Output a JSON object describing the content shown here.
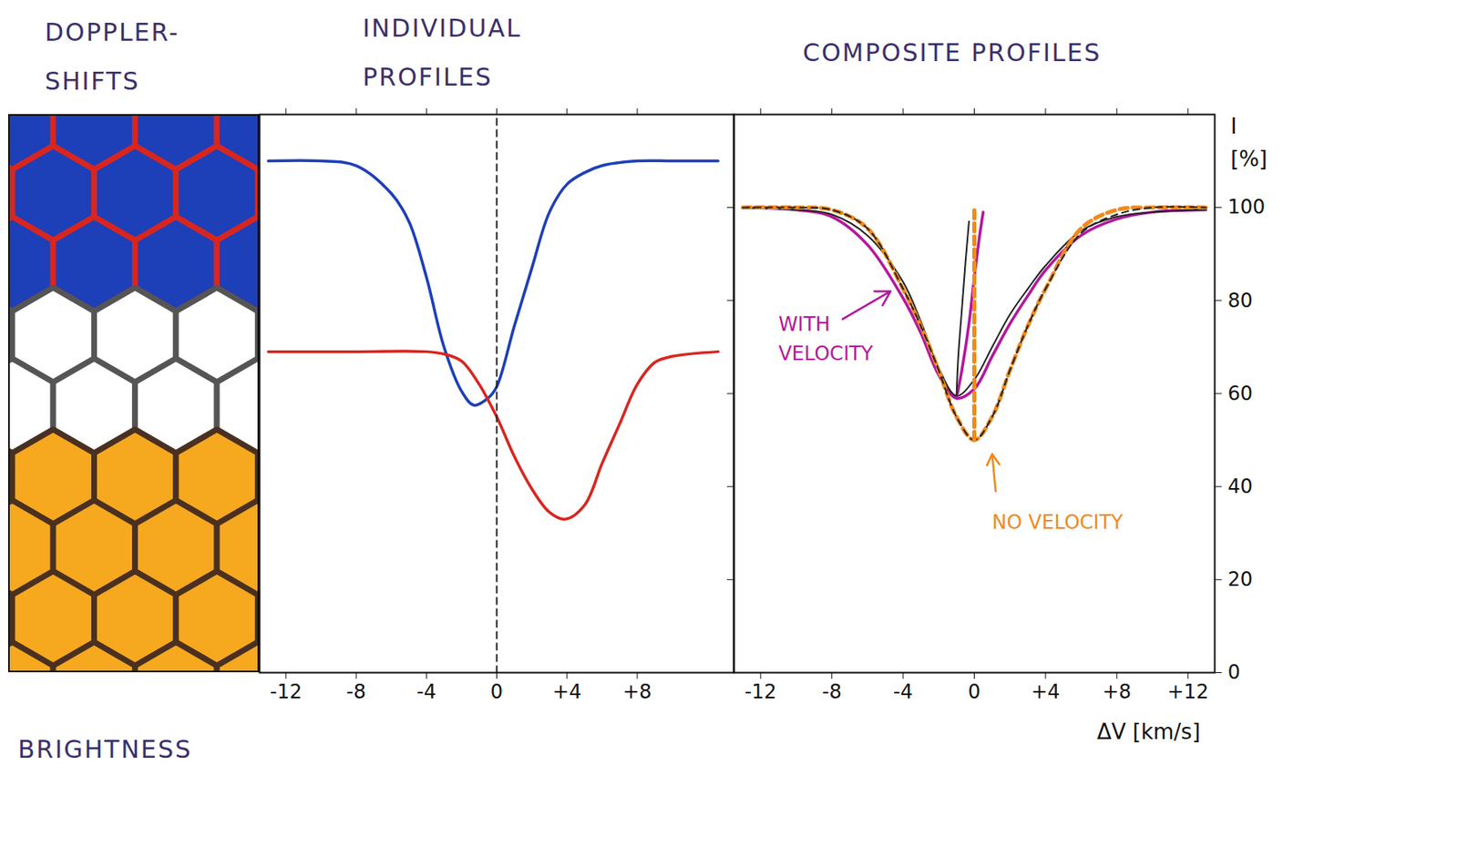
{
  "chart_data": [
    {
      "type": "hexagons",
      "title": "DOPPLER-SHIFTS",
      "xlabel": "BRIGHTNESS",
      "colors": [
        "#1d3fb8",
        "#d8261f",
        "#ffffff",
        "#555555",
        "#f6a81f",
        "#4a3020"
      ]
    },
    {
      "type": "line",
      "title": "INDIVIDUAL PROFILES",
      "xlim": [
        -13.5,
        13.5
      ],
      "xticks": [
        -12,
        -8,
        -4,
        0,
        {
          "value": 4,
          "label": "+4"
        },
        {
          "value": 8,
          "label": "+8"
        }
      ],
      "ylim": [
        0,
        120
      ],
      "tick_labels": "x",
      "series": [
        {
          "color": "#1d3fb8",
          "line_style": "solid",
          "x": [
            -13,
            -10,
            -8,
            -6,
            -5,
            -4,
            -3,
            -2,
            -1.3,
            -0.5,
            0,
            1,
            2,
            3,
            4,
            5,
            6,
            8,
            10,
            12.6
          ],
          "values": [
            110,
            110,
            109,
            103,
            97,
            85,
            70,
            60.5,
            57.5,
            59,
            61.5,
            74.5,
            87,
            99,
            105,
            107.5,
            109,
            110,
            110,
            110
          ]
        },
        {
          "color": "#d8261f",
          "line_style": "solid",
          "x": [
            -13,
            -8,
            -4,
            -3,
            -2,
            -1,
            0,
            1,
            2,
            3,
            3.9,
            5,
            6,
            7,
            8,
            9,
            10,
            12.6
          ],
          "values": [
            69,
            69,
            69,
            68.5,
            67,
            62,
            55,
            46.5,
            39.5,
            34.5,
            33,
            36,
            45,
            53.5,
            62,
            66.7,
            68,
            69
          ]
        },
        {
          "color": "#222222",
          "line_style": "dashed",
          "x": [
            0,
            0
          ],
          "values": [
            0,
            120
          ]
        }
      ]
    },
    {
      "type": "line",
      "title": "COMPOSITE PROFILES",
      "xlabel": "ΔV [km/s]",
      "ylabel": "I [%]",
      "xlim": [
        -13.5,
        13.5
      ],
      "xticks": [
        -12,
        -8,
        -4,
        0,
        {
          "value": 4,
          "label": "+4"
        },
        {
          "value": 8,
          "label": "+8"
        },
        {
          "value": 12,
          "label": "+12"
        }
      ],
      "ylim": [
        0,
        120
      ],
      "yticks": [
        0,
        20,
        40,
        60,
        80,
        100
      ],
      "series": [
        {
          "name": "WITH VELOCITY",
          "color": "#b5179e",
          "line_style": "solid",
          "x": [
            -13,
            -10,
            -8,
            -6,
            -4,
            -3,
            -2,
            -1,
            0,
            1,
            2,
            3,
            4,
            6,
            8,
            10,
            13
          ],
          "values": [
            100,
            99.5,
            98,
            92,
            80.5,
            73,
            64,
            59,
            61,
            68,
            75,
            81,
            86.5,
            94,
            97.5,
            99,
            99.5
          ]
        },
        {
          "color": "#222222",
          "line_style": "solid",
          "x": [
            -13,
            -10,
            -8,
            -6,
            -4,
            -3,
            -2,
            -1,
            0,
            1,
            2,
            3,
            4,
            6,
            8,
            10,
            13
          ],
          "values": [
            100,
            99.5,
            98.5,
            94,
            84,
            75.5,
            65.5,
            59.5,
            63,
            70,
            77,
            82.5,
            87.5,
            95,
            98,
            99,
            99.5
          ]
        },
        {
          "name": "NO VELOCITY",
          "color": "#f08a1c",
          "line_style": "dashed",
          "x": [
            -13,
            -10,
            -8,
            -6,
            -4,
            -3,
            -2,
            -1,
            0,
            1,
            2,
            3,
            4,
            6,
            8,
            10,
            13
          ],
          "values": [
            100,
            100,
            99.5,
            95.5,
            82.5,
            74.5,
            65,
            55,
            50,
            55,
            65,
            74.5,
            82.5,
            95.5,
            99.5,
            100,
            100
          ]
        },
        {
          "color": "#222222",
          "line_style": "dashed",
          "x": [
            -13,
            -10,
            -8,
            -6,
            -4,
            -3,
            -2,
            -1,
            0,
            1,
            2,
            3,
            4,
            6,
            8,
            10,
            13
          ],
          "values": [
            100,
            100,
            99.5,
            95.5,
            82.5,
            74.5,
            65,
            55,
            50,
            55,
            65,
            74.5,
            82.5,
            94.5,
            98.5,
            100,
            100
          ]
        },
        {
          "color": "#b5179e",
          "line_style": "solid",
          "x": [
            -1,
            -0.7,
            -0.3,
            0,
            0.3,
            0.5
          ],
          "values": [
            59,
            65,
            75,
            85,
            94,
            99
          ]
        },
        {
          "color": "#222222",
          "line_style": "solid",
          "x": [
            -1,
            -0.9,
            -0.7,
            -0.5,
            -0.3
          ],
          "values": [
            59.5,
            68,
            78,
            88,
            97
          ]
        },
        {
          "color": "#f08a1c",
          "line_style": "dashed",
          "x": [
            0,
            0
          ],
          "values": [
            50,
            100
          ]
        }
      ]
    }
  ]
}
